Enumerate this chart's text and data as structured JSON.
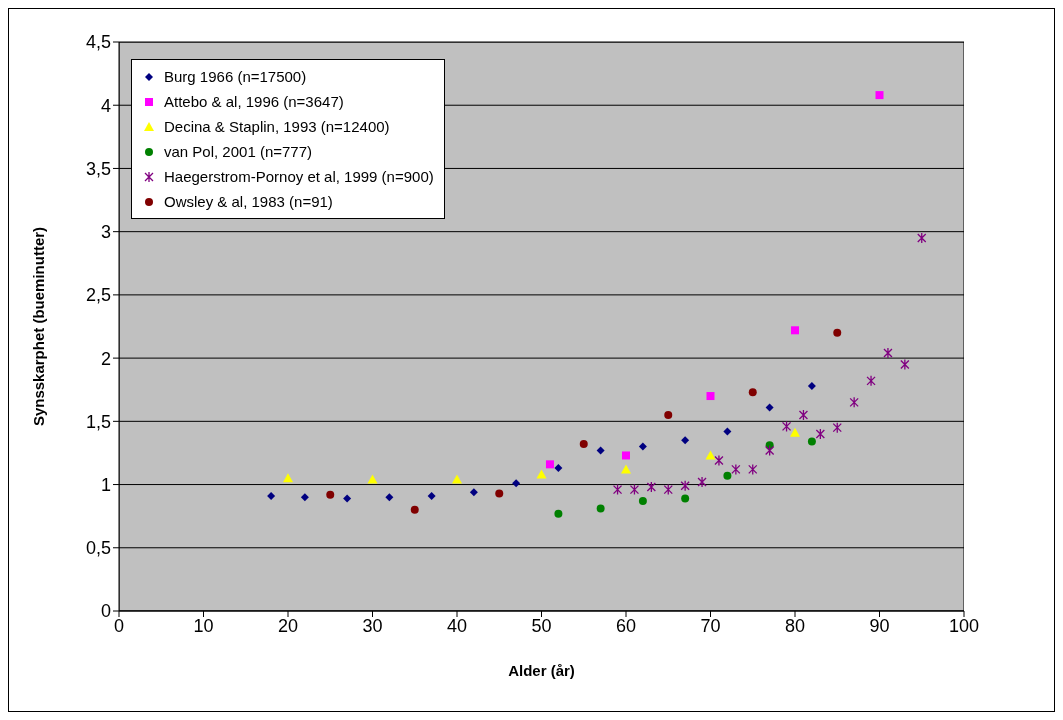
{
  "chart_data": {
    "type": "scatter",
    "xlabel": "Alder (år)",
    "ylabel": "Synsskarphet (bueminutter)",
    "xlim": [
      0,
      100
    ],
    "xticks": [
      0,
      10,
      20,
      30,
      40,
      50,
      60,
      70,
      80,
      90,
      100
    ],
    "ylim": [
      0,
      4.5
    ],
    "yticks": [
      0,
      {
        "value": 0.5,
        "label": "0,5"
      },
      1,
      {
        "value": 1.5,
        "label": "1,5"
      },
      2,
      {
        "value": 2.5,
        "label": "2,5"
      },
      3,
      {
        "value": 3.5,
        "label": "3,5"
      },
      4,
      {
        "value": 4.5,
        "label": "4,5"
      }
    ],
    "grid": "y",
    "legend": "top left",
    "series": [
      {
        "name": "Burg 1966 (n=17500)",
        "color": "#000080",
        "marker": "diamond",
        "x": [
          18,
          22,
          27,
          32,
          37,
          42,
          47,
          52,
          57,
          62,
          67,
          72,
          77,
          82
        ],
        "values": [
          0.91,
          0.9,
          0.89,
          0.9,
          0.91,
          0.94,
          1.01,
          1.13,
          1.27,
          1.3,
          1.35,
          1.42,
          1.61,
          1.78
        ]
      },
      {
        "name": "Attebo & al, 1996 (n=3647)",
        "color": "#ff00ff",
        "marker": "square",
        "x": [
          51,
          60,
          70,
          80,
          90
        ],
        "values": [
          1.16,
          1.23,
          1.7,
          2.22,
          4.08
        ]
      },
      {
        "name": "Decina & Staplin, 1993 (n=12400)",
        "color": "#ffff00",
        "marker": "triangle",
        "x": [
          20,
          30,
          40,
          50,
          60,
          70,
          80
        ],
        "values": [
          1.05,
          1.04,
          1.04,
          1.08,
          1.12,
          1.23,
          1.41
        ]
      },
      {
        "name": "van Pol, 2001 (n=777)",
        "color": "#008000",
        "marker": "circle",
        "x": [
          52,
          57,
          62,
          67,
          72,
          77,
          82
        ],
        "values": [
          0.77,
          0.81,
          0.87,
          0.89,
          1.07,
          1.31,
          1.34
        ]
      },
      {
        "name": "Haegerstrom-Pornoy et al, 1999 (n=900)",
        "color": "#800080",
        "marker": "cross",
        "x": [
          59,
          61,
          63,
          65,
          67,
          69,
          71,
          73,
          75,
          77,
          79,
          81,
          83,
          85,
          87,
          89,
          91,
          93,
          95
        ],
        "values": [
          0.96,
          0.96,
          0.98,
          0.96,
          0.99,
          1.02,
          1.19,
          1.12,
          1.12,
          1.27,
          1.46,
          1.55,
          1.4,
          1.45,
          1.65,
          1.82,
          2.04,
          1.95,
          2.95
        ]
      },
      {
        "name": "Owsley & al, 1983 (n=91)",
        "color": "#800000",
        "marker": "circle",
        "x": [
          25,
          35,
          45,
          55,
          65,
          75,
          85
        ],
        "values": [
          0.92,
          0.8,
          0.93,
          1.32,
          1.55,
          1.73,
          2.2
        ]
      }
    ]
  }
}
